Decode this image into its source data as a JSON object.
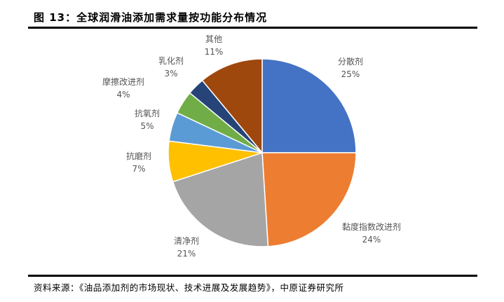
{
  "title": "图 13：全球润滑油添加需求量按功能分布情况",
  "source": "资料来源：《油品添加剂的市场现状、技术进展及发展趋势》，中原证券研究所",
  "chart_data": {
    "type": "pie",
    "start_angle": "12 o'clock",
    "direction": "clockwise",
    "slices": [
      {
        "label": "分散剂",
        "value": 25,
        "value_label": "25%",
        "color": "#4472C4"
      },
      {
        "label": "黏度指数改进剂",
        "value": 24,
        "value_label": "24%",
        "color": "#ED7D31"
      },
      {
        "label": "清净剂",
        "value": 21,
        "value_label": "21%",
        "color": "#A5A5A5"
      },
      {
        "label": "抗磨剂",
        "value": 7,
        "value_label": "7%",
        "color": "#FFC000"
      },
      {
        "label": "抗氧剂",
        "value": 5,
        "value_label": "5%",
        "color": "#5B9BD5"
      },
      {
        "label": "摩擦改进剂",
        "value": 4,
        "value_label": "4%",
        "color": "#70AD47"
      },
      {
        "label": "乳化剂",
        "value": 3,
        "value_label": "3%",
        "color": "#264478"
      },
      {
        "label": "其他",
        "value": 11,
        "value_label": "11%",
        "color": "#9E480E"
      }
    ]
  }
}
